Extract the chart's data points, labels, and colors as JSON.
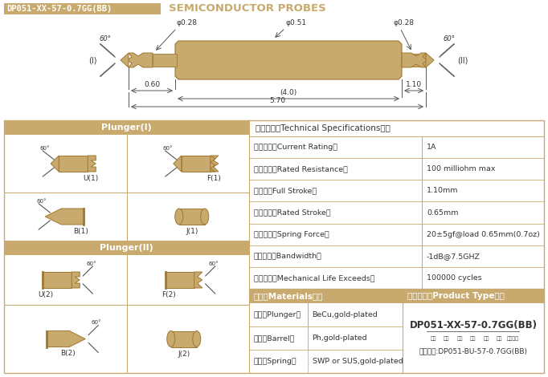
{
  "title_box_text": "DP051-XX-57-0.7GG(BB)",
  "title_right_text": "SEMICONDUCTOR PROBES",
  "gold_color": "#c8a96e",
  "gold_dark": "#a07830",
  "border_color": "#c8a96e",
  "background_color": "#ffffff",
  "dark_text": "#333333",
  "specs": [
    [
      "额定电流（Current Rating）",
      "1A"
    ],
    [
      "额定电限（Rated Resistance）",
      "100 milliohm max"
    ],
    [
      "满行程（Full Stroke）",
      "1.10mm"
    ],
    [
      "额定行程（Rated Stroke）",
      "0.65mm"
    ],
    [
      "额定弹力（Spring Force）",
      "20±5gf@load 0.65mm(0.7oz)"
    ],
    [
      "频率带宽（Bandwidth）",
      "-1dB@7.5GHZ"
    ],
    [
      "测试寿命（Mechanical Life Exceeds）",
      "100000 cycles"
    ]
  ],
  "materials": [
    [
      "针头（Plunger）",
      "BeCu,gold-plated"
    ],
    [
      "针管（Barrel）",
      "Ph,gold-plated"
    ],
    [
      "弹簧（Spring）",
      "SWP or SUS,gold-plated"
    ]
  ],
  "tech_label": "技术要求（Technical Specifications）：",
  "materials_label": "材质（Materials）：",
  "product_type_label": "成品型号（Product Type）：",
  "product_type_code": "DP051-XX-57-0.7GG(BB)",
  "product_type_sub": [
    "系列",
    "规格",
    "头型",
    "总长",
    "弹力",
    "镍金",
    "针头材质"
  ],
  "product_order": "订购举例:DP051-BU-57-0.7GG(BB)",
  "plunger1_label": "Plunger(I)",
  "plunger2_label": "Plunger(II)"
}
